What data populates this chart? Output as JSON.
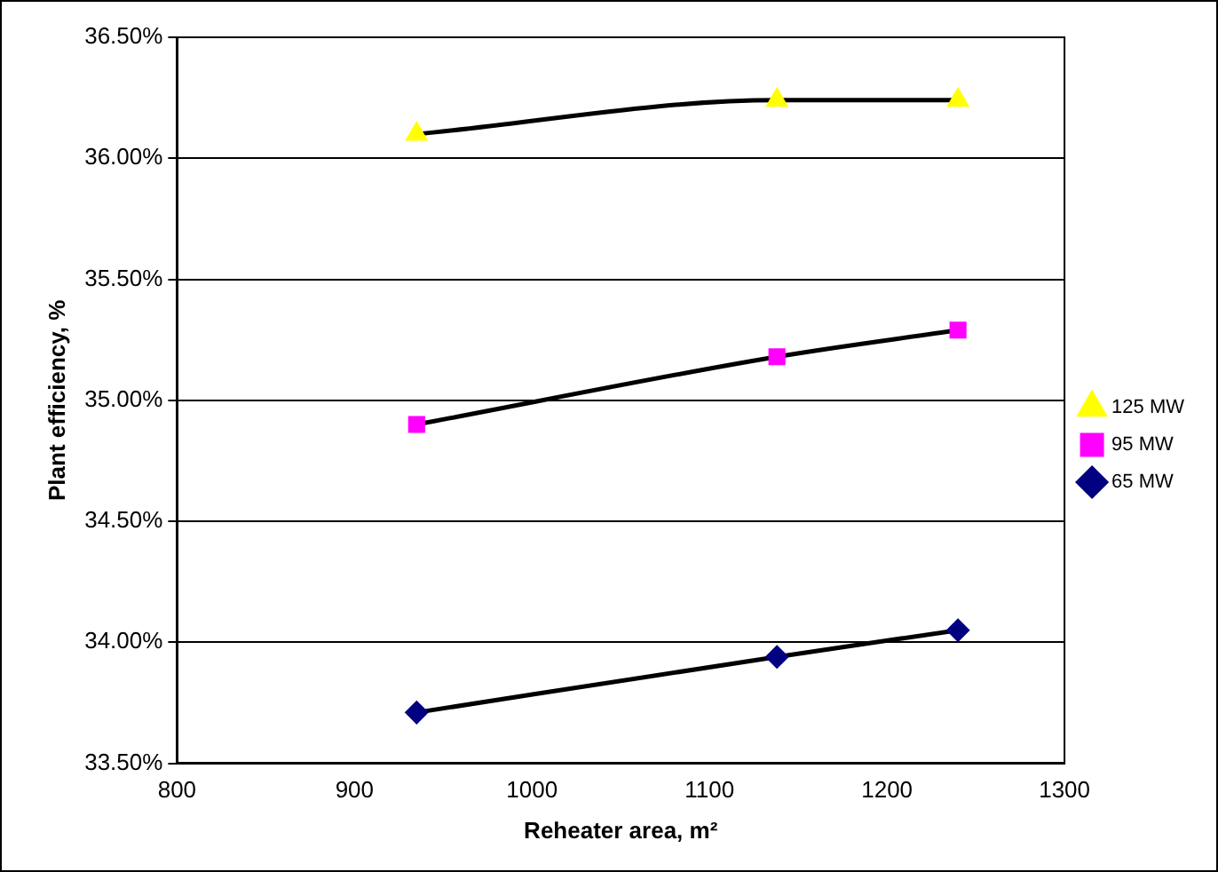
{
  "chart_data": {
    "type": "line",
    "xlabel": "Reheater area, m²",
    "ylabel": "Plant efficiency, %",
    "xlim": [
      800,
      1300
    ],
    "xticks": [
      800,
      900,
      1000,
      1100,
      1200,
      1300
    ],
    "ylim": [
      33.5,
      36.5
    ],
    "yticks": [
      {
        "value": 33.5,
        "label": "33.50%"
      },
      {
        "value": 34,
        "label": "34.00%"
      },
      {
        "value": 34.5,
        "label": "34.50%"
      },
      {
        "value": 35,
        "label": "35.00%"
      },
      {
        "value": 35.5,
        "label": "35.50%"
      },
      {
        "value": 36,
        "label": "36.00%"
      },
      {
        "value": 36.5,
        "label": "36.50%"
      }
    ],
    "grid": "y",
    "legend": "right",
    "series": [
      {
        "name": "125 MW",
        "color": "#ffff00",
        "marker": "triangle",
        "x": [
          935,
          1138,
          1240
        ],
        "values": [
          36.1,
          36.24,
          36.24
        ]
      },
      {
        "name": "95 MW",
        "color": "#ff00ff",
        "marker": "square",
        "x": [
          935,
          1138,
          1240
        ],
        "values": [
          34.9,
          35.18,
          35.29
        ]
      },
      {
        "name": "65 MW",
        "color": "#000080",
        "marker": "diamond",
        "x": [
          935,
          1138,
          1240
        ],
        "values": [
          33.71,
          33.94,
          34.05
        ]
      }
    ]
  }
}
